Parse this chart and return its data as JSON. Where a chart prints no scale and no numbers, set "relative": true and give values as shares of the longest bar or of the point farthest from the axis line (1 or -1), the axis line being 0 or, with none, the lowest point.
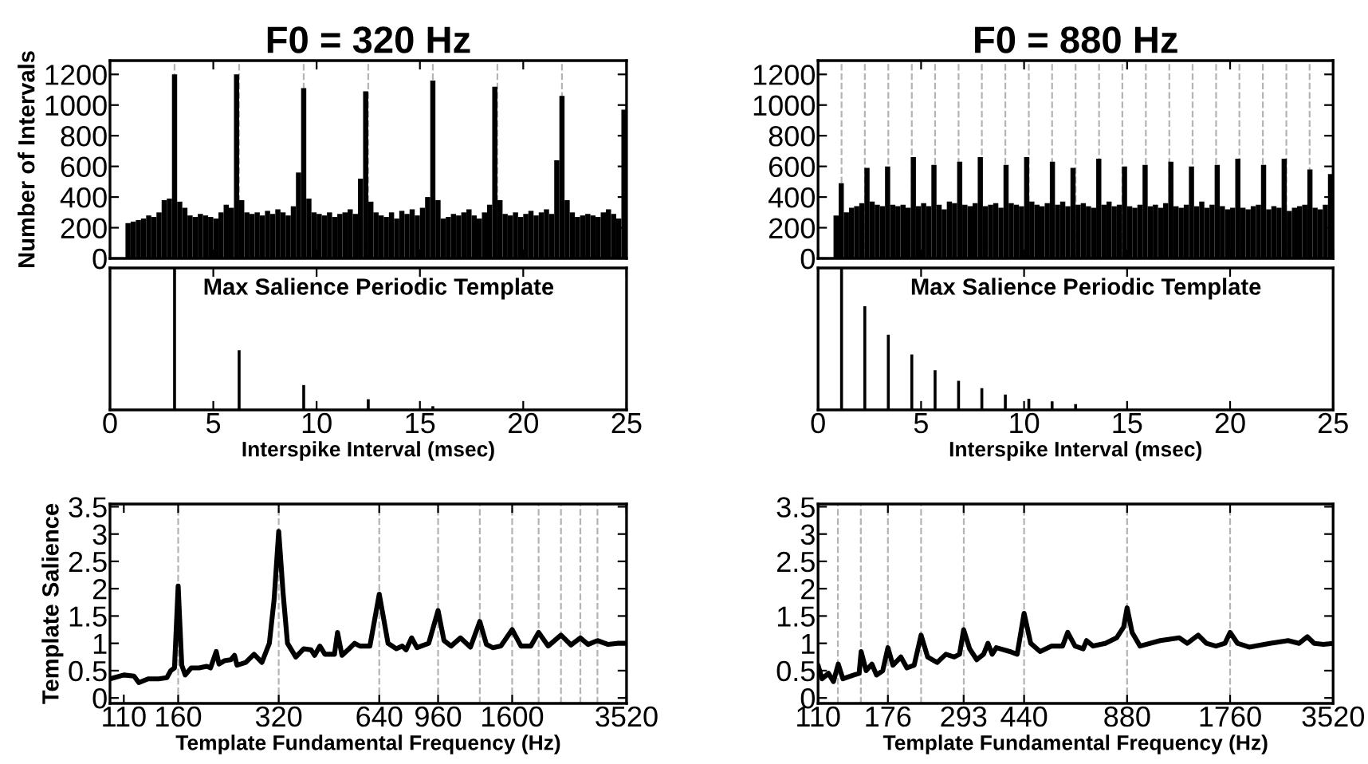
{
  "chart_data": [
    {
      "type": "histogram",
      "title": "F0 = 320 Hz",
      "ylabel": "Number of Intervals",
      "color": "#000000",
      "xlim": [
        0,
        25
      ],
      "xticks": [
        0,
        5,
        10,
        15,
        20,
        25
      ],
      "ylim": [
        0,
        1290
      ],
      "yticks": [
        0,
        200,
        400,
        600,
        800,
        1000,
        1200
      ],
      "tick_labels": "y",
      "bins": [
        0,
        0.25,
        0.5,
        0.75,
        1,
        1.25,
        1.5,
        1.75,
        2,
        2.25,
        2.5,
        2.75,
        3,
        3.25,
        3.5,
        3.75,
        4,
        4.25,
        4.5,
        4.75,
        5,
        5.25,
        5.5,
        5.75,
        6,
        6.25,
        6.5,
        6.75,
        7,
        7.25,
        7.5,
        7.75,
        8,
        8.25,
        8.5,
        8.75,
        9,
        9.25,
        9.5,
        9.75,
        10,
        10.25,
        10.5,
        10.75,
        11,
        11.25,
        11.5,
        11.75,
        12,
        12.25,
        12.5,
        12.75,
        13,
        13.25,
        13.5,
        13.75,
        14,
        14.25,
        14.5,
        14.75,
        15,
        15.25,
        15.5,
        15.75,
        16,
        16.25,
        16.5,
        16.75,
        17,
        17.25,
        17.5,
        17.75,
        18,
        18.25,
        18.5,
        18.75,
        19,
        19.25,
        19.5,
        19.75,
        20,
        20.25,
        20.5,
        20.75,
        21,
        21.25,
        21.5,
        21.75,
        22,
        22.25,
        22.5,
        22.75,
        23,
        23.25,
        23.5,
        23.75,
        24,
        24.25,
        24.5,
        24.75,
        25
      ],
      "values": [
        0,
        0,
        0,
        230,
        240,
        250,
        260,
        280,
        270,
        300,
        380,
        390,
        1200,
        370,
        330,
        280,
        270,
        290,
        280,
        270,
        260,
        300,
        350,
        330,
        1200,
        380,
        300,
        290,
        300,
        280,
        310,
        290,
        320,
        300,
        280,
        340,
        560,
        1110,
        390,
        300,
        290,
        280,
        300,
        270,
        290,
        300,
        320,
        290,
        520,
        1090,
        370,
        300,
        280,
        270,
        300,
        260,
        310,
        290,
        320,
        280,
        330,
        400,
        1160,
        380,
        260,
        270,
        290,
        280,
        300,
        320,
        280,
        260,
        300,
        350,
        1120,
        380,
        290,
        280,
        300,
        270,
        290,
        310,
        280,
        300,
        320,
        290,
        640,
        1060,
        380,
        300,
        270,
        280,
        290,
        280,
        270,
        300,
        320,
        290,
        260,
        970
      ],
      "ref_lines": [
        {
          "axis": "x",
          "value": 3.125,
          "color": "#b4b4b4",
          "line_style": "dashed"
        },
        {
          "axis": "x",
          "value": 6.25,
          "color": "#b4b4b4",
          "line_style": "dashed"
        },
        {
          "axis": "x",
          "value": 9.375,
          "color": "#b4b4b4",
          "line_style": "dashed"
        },
        {
          "axis": "x",
          "value": 12.5,
          "color": "#b4b4b4",
          "line_style": "dashed"
        },
        {
          "axis": "x",
          "value": 15.625,
          "color": "#b4b4b4",
          "line_style": "dashed"
        },
        {
          "axis": "x",
          "value": 18.75,
          "color": "#b4b4b4",
          "line_style": "dashed"
        },
        {
          "axis": "x",
          "value": 21.875,
          "color": "#b4b4b4",
          "line_style": "dashed"
        }
      ]
    },
    {
      "type": "histogram",
      "title": "F0 = 880 Hz",
      "color": "#000000",
      "xlim": [
        0,
        25
      ],
      "xticks": [
        0,
        5,
        10,
        15,
        20,
        25
      ],
      "ylim": [
        0,
        1290
      ],
      "yticks": [
        0,
        200,
        400,
        600,
        800,
        1000,
        1200
      ],
      "tick_labels": "y",
      "bins": [
        0,
        0.25,
        0.5,
        0.75,
        1,
        1.25,
        1.5,
        1.75,
        2,
        2.25,
        2.5,
        2.75,
        3,
        3.25,
        3.5,
        3.75,
        4,
        4.25,
        4.5,
        4.75,
        5,
        5.25,
        5.5,
        5.75,
        6,
        6.25,
        6.5,
        6.75,
        7,
        7.25,
        7.5,
        7.75,
        8,
        8.25,
        8.5,
        8.75,
        9,
        9.25,
        9.5,
        9.75,
        10,
        10.25,
        10.5,
        10.75,
        11,
        11.25,
        11.5,
        11.75,
        12,
        12.25,
        12.5,
        12.75,
        13,
        13.25,
        13.5,
        13.75,
        14,
        14.25,
        14.5,
        14.75,
        15,
        15.25,
        15.5,
        15.75,
        16,
        16.25,
        16.5,
        16.75,
        17,
        17.25,
        17.5,
        17.75,
        18,
        18.25,
        18.5,
        18.75,
        19,
        19.25,
        19.5,
        19.75,
        20,
        20.25,
        20.5,
        20.75,
        21,
        21.25,
        21.5,
        21.75,
        22,
        22.25,
        22.5,
        22.75,
        23,
        23.25,
        23.5,
        23.75,
        24,
        24.25,
        24.5,
        24.75,
        25
      ],
      "values": [
        0,
        0,
        0,
        280,
        490,
        300,
        330,
        340,
        360,
        590,
        370,
        350,
        340,
        600,
        350,
        340,
        350,
        330,
        660,
        340,
        360,
        340,
        610,
        350,
        320,
        370,
        360,
        630,
        350,
        340,
        360,
        660,
        340,
        350,
        360,
        330,
        610,
        360,
        350,
        340,
        660,
        370,
        350,
        340,
        360,
        630,
        350,
        370,
        340,
        590,
        350,
        360,
        340,
        330,
        650,
        350,
        370,
        340,
        350,
        600,
        340,
        330,
        350,
        610,
        340,
        350,
        330,
        360,
        630,
        340,
        330,
        350,
        600,
        340,
        370,
        330,
        350,
        610,
        340,
        320,
        330,
        650,
        330,
        320,
        340,
        350,
        610,
        320,
        340,
        330,
        650,
        310,
        330,
        340,
        350,
        580,
        330,
        320,
        350,
        550
      ],
      "ref_lines": [
        {
          "axis": "x",
          "value": 1.14,
          "color": "#b4b4b4",
          "line_style": "dashed"
        },
        {
          "axis": "x",
          "value": 2.27,
          "color": "#b4b4b4",
          "line_style": "dashed"
        },
        {
          "axis": "x",
          "value": 3.41,
          "color": "#b4b4b4",
          "line_style": "dashed"
        },
        {
          "axis": "x",
          "value": 4.55,
          "color": "#b4b4b4",
          "line_style": "dashed"
        },
        {
          "axis": "x",
          "value": 5.68,
          "color": "#b4b4b4",
          "line_style": "dashed"
        },
        {
          "axis": "x",
          "value": 6.82,
          "color": "#b4b4b4",
          "line_style": "dashed"
        },
        {
          "axis": "x",
          "value": 7.95,
          "color": "#b4b4b4",
          "line_style": "dashed"
        },
        {
          "axis": "x",
          "value": 9.09,
          "color": "#b4b4b4",
          "line_style": "dashed"
        },
        {
          "axis": "x",
          "value": 10.23,
          "color": "#b4b4b4",
          "line_style": "dashed"
        },
        {
          "axis": "x",
          "value": 11.36,
          "color": "#b4b4b4",
          "line_style": "dashed"
        },
        {
          "axis": "x",
          "value": 12.5,
          "color": "#b4b4b4",
          "line_style": "dashed"
        },
        {
          "axis": "x",
          "value": 13.64,
          "color": "#b4b4b4",
          "line_style": "dashed"
        },
        {
          "axis": "x",
          "value": 14.77,
          "color": "#b4b4b4",
          "line_style": "dashed"
        },
        {
          "axis": "x",
          "value": 15.91,
          "color": "#b4b4b4",
          "line_style": "dashed"
        },
        {
          "axis": "x",
          "value": 17.05,
          "color": "#b4b4b4",
          "line_style": "dashed"
        },
        {
          "axis": "x",
          "value": 18.18,
          "color": "#b4b4b4",
          "line_style": "dashed"
        },
        {
          "axis": "x",
          "value": 19.32,
          "color": "#b4b4b4",
          "line_style": "dashed"
        },
        {
          "axis": "x",
          "value": 20.45,
          "color": "#b4b4b4",
          "line_style": "dashed"
        },
        {
          "axis": "x",
          "value": 21.59,
          "color": "#b4b4b4",
          "line_style": "dashed"
        },
        {
          "axis": "x",
          "value": 22.73,
          "color": "#b4b4b4",
          "line_style": "dashed"
        },
        {
          "axis": "x",
          "value": 23.86,
          "color": "#b4b4b4",
          "line_style": "dashed"
        }
      ]
    },
    {
      "type": "bar",
      "relative": true,
      "xlabel": "Interspike Interval (msec)",
      "annotations": [
        "Max Salience Periodic Template"
      ],
      "color": "#000000",
      "xlim": [
        0,
        25
      ],
      "xticks": [
        0,
        5,
        10,
        15,
        20,
        25
      ],
      "tick_labels": "x",
      "x": [
        3.125,
        6.25,
        9.375,
        12.5,
        15.625
      ],
      "values": [
        1,
        0.42,
        0.175,
        0.075,
        0.026
      ]
    },
    {
      "type": "bar",
      "relative": true,
      "xlabel": "Interspike Interval (msec)",
      "annotations": [
        "Max Salience Periodic Template"
      ],
      "color": "#000000",
      "xlim": [
        0,
        25
      ],
      "xticks": [
        0,
        5,
        10,
        15,
        20,
        25
      ],
      "tick_labels": "x",
      "x": [
        1.14,
        2.27,
        3.41,
        4.55,
        5.68,
        6.82,
        7.95,
        9.09,
        10.23,
        11.36,
        12.5
      ],
      "values": [
        1,
        0.73,
        0.53,
        0.39,
        0.28,
        0.205,
        0.153,
        0.108,
        0.078,
        0.06,
        0.041
      ]
    },
    {
      "type": "line",
      "ylabel": "Template Salience",
      "xlabel": "Template Fundamental Frequency (Hz)",
      "color": "#000000",
      "log": "x",
      "xlim": [
        100,
        3520
      ],
      "xticks": [
        110,
        160,
        320,
        640,
        960,
        1600,
        3520
      ],
      "ylim": [
        -0.1,
        3.55
      ],
      "yticks": [
        0,
        0.5,
        1,
        1.5,
        2,
        2.5,
        3,
        3.5
      ],
      "x": [
        100,
        110,
        118,
        122,
        130,
        140,
        148,
        152,
        156,
        160,
        164,
        168,
        175,
        185,
        195,
        200,
        208,
        212,
        220,
        230,
        236,
        240,
        255,
        270,
        285,
        300,
        310,
        320,
        330,
        340,
        360,
        380,
        400,
        410,
        425,
        440,
        470,
        480,
        495,
        520,
        540,
        560,
        600,
        640,
        680,
        720,
        750,
        770,
        800,
        830,
        900,
        960,
        1000,
        1050,
        1120,
        1200,
        1280,
        1340,
        1400,
        1480,
        1600,
        1700,
        1820,
        1920,
        2050,
        2240,
        2400,
        2560,
        2700,
        2880,
        3100,
        3300,
        3520
      ],
      "values": [
        0.35,
        0.42,
        0.4,
        0.28,
        0.35,
        0.35,
        0.37,
        0.5,
        0.55,
        2.05,
        0.6,
        0.42,
        0.55,
        0.55,
        0.58,
        0.55,
        0.85,
        0.62,
        0.68,
        0.7,
        0.78,
        0.6,
        0.65,
        0.8,
        0.65,
        1.0,
        1.8,
        3.05,
        1.9,
        1.0,
        0.75,
        0.9,
        0.88,
        0.78,
        0.95,
        0.8,
        0.8,
        1.2,
        0.78,
        0.9,
        1.0,
        0.95,
        0.95,
        1.9,
        1.0,
        0.9,
        0.95,
        0.88,
        1.1,
        0.92,
        1.0,
        1.6,
        1.05,
        0.95,
        1.1,
        0.93,
        1.4,
        0.98,
        0.92,
        0.95,
        1.25,
        0.95,
        0.95,
        1.2,
        0.95,
        1.15,
        0.97,
        1.1,
        0.98,
        1.05,
        0.98,
        1.0,
        1.0
      ],
      "ref_lines": [
        {
          "axis": "x",
          "value": 160,
          "color": "#b4b4b4",
          "line_style": "dashed"
        },
        {
          "axis": "x",
          "value": 320,
          "color": "#b4b4b4",
          "line_style": "dashed"
        },
        {
          "axis": "x",
          "value": 640,
          "color": "#b4b4b4",
          "line_style": "dashed"
        },
        {
          "axis": "x",
          "value": 960,
          "color": "#b4b4b4",
          "line_style": "dashed"
        },
        {
          "axis": "x",
          "value": 1280,
          "color": "#b4b4b4",
          "line_style": "dashed"
        },
        {
          "axis": "x",
          "value": 1600,
          "color": "#b4b4b4",
          "line_style": "dashed"
        },
        {
          "axis": "x",
          "value": 1920,
          "color": "#b4b4b4",
          "line_style": "dashed"
        },
        {
          "axis": "x",
          "value": 2240,
          "color": "#b4b4b4",
          "line_style": "dashed"
        },
        {
          "axis": "x",
          "value": 2560,
          "color": "#b4b4b4",
          "line_style": "dashed"
        },
        {
          "axis": "x",
          "value": 2880,
          "color": "#b4b4b4",
          "line_style": "dashed"
        }
      ]
    },
    {
      "type": "line",
      "xlabel": "Template Fundamental Frequency (Hz)",
      "color": "#000000",
      "log": "x",
      "xlim": [
        110,
        3520
      ],
      "xticks": [
        110,
        176,
        293,
        440,
        880,
        1760,
        3520
      ],
      "ylim": [
        -0.1,
        3.55
      ],
      "yticks": [
        0,
        0.5,
        1,
        1.5,
        2,
        2.5,
        3,
        3.5
      ],
      "x": [
        110,
        113,
        118,
        122,
        126,
        130,
        140,
        145,
        147,
        152,
        158,
        163,
        170,
        176,
        182,
        192,
        200,
        210,
        220,
        230,
        245,
        260,
        275,
        285,
        293,
        305,
        320,
        335,
        345,
        355,
        365,
        400,
        420,
        440,
        460,
        490,
        530,
        570,
        590,
        620,
        655,
        670,
        700,
        760,
        820,
        860,
        880,
        910,
        960,
        1100,
        1250,
        1320,
        1420,
        1500,
        1600,
        1700,
        1760,
        1850,
        2000,
        2300,
        2600,
        2800,
        2960,
        3100,
        3300,
        3520
      ],
      "values": [
        0.6,
        0.35,
        0.45,
        0.3,
        0.62,
        0.35,
        0.42,
        0.45,
        0.85,
        0.5,
        0.62,
        0.42,
        0.5,
        0.92,
        0.6,
        0.75,
        0.55,
        0.6,
        1.15,
        0.75,
        0.65,
        0.8,
        0.75,
        0.8,
        1.25,
        0.9,
        0.7,
        0.8,
        1.0,
        0.8,
        0.92,
        0.85,
        0.8,
        1.55,
        1.0,
        0.85,
        0.95,
        0.95,
        1.2,
        0.95,
        0.9,
        1.05,
        0.95,
        1.0,
        1.1,
        1.3,
        1.65,
        1.2,
        0.95,
        1.05,
        1.1,
        1.0,
        1.15,
        1.0,
        0.95,
        1.0,
        1.2,
        1.0,
        0.93,
        1.0,
        1.05,
        1.0,
        1.12,
        1.0,
        0.98,
        1.0
      ],
      "ref_lines": [
        {
          "axis": "x",
          "value": 125.7,
          "color": "#b4b4b4",
          "line_style": "dashed"
        },
        {
          "axis": "x",
          "value": 146.7,
          "color": "#b4b4b4",
          "line_style": "dashed"
        },
        {
          "axis": "x",
          "value": 176,
          "color": "#b4b4b4",
          "line_style": "dashed"
        },
        {
          "axis": "x",
          "value": 220,
          "color": "#b4b4b4",
          "line_style": "dashed"
        },
        {
          "axis": "x",
          "value": 293.3,
          "color": "#b4b4b4",
          "line_style": "dashed"
        },
        {
          "axis": "x",
          "value": 440,
          "color": "#b4b4b4",
          "line_style": "dashed"
        },
        {
          "axis": "x",
          "value": 880,
          "color": "#b4b4b4",
          "line_style": "dashed"
        },
        {
          "axis": "x",
          "value": 1760,
          "color": "#b4b4b4",
          "line_style": "dashed"
        }
      ]
    }
  ]
}
